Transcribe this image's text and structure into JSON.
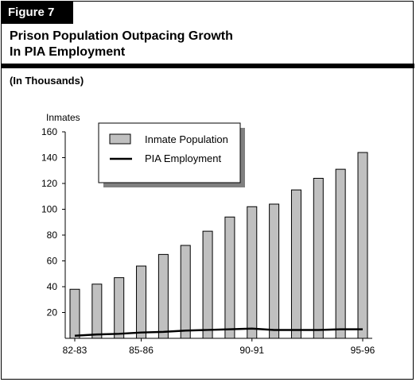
{
  "figure_label": "Figure 7",
  "title_line1": "Prison Population Outpacing Growth",
  "title_line2": "In PIA Employment",
  "subtitle": "(In Thousands)",
  "colors": {
    "bar_fill": "#c0c0c0",
    "bar_stroke": "#000000",
    "line": "#000000",
    "shadow": "#808080"
  },
  "chart_data": {
    "type": "bar",
    "ylabel": "Inmates",
    "ylim": [
      0,
      160
    ],
    "yticks": [
      20,
      40,
      60,
      80,
      100,
      120,
      140,
      160
    ],
    "categories": [
      "82-83",
      "",
      "",
      "85-86",
      "",
      "",
      "",
      "",
      "90-91",
      "",
      "",
      "",
      "",
      "95-96"
    ],
    "x_tick_labels": [
      "82-83",
      "85-86",
      "90-91",
      "95-96"
    ],
    "legend_position": "top-center",
    "series": [
      {
        "name": "Inmate Population",
        "type": "bar",
        "values": [
          38,
          42,
          47,
          56,
          65,
          72,
          83,
          94,
          102,
          104,
          115,
          124,
          131,
          144
        ]
      },
      {
        "name": "PIA Employment",
        "type": "line",
        "values": [
          2,
          3,
          3.5,
          4.5,
          5,
          6,
          6.5,
          7,
          7.5,
          6.5,
          6.5,
          6.5,
          7,
          7
        ]
      }
    ]
  }
}
